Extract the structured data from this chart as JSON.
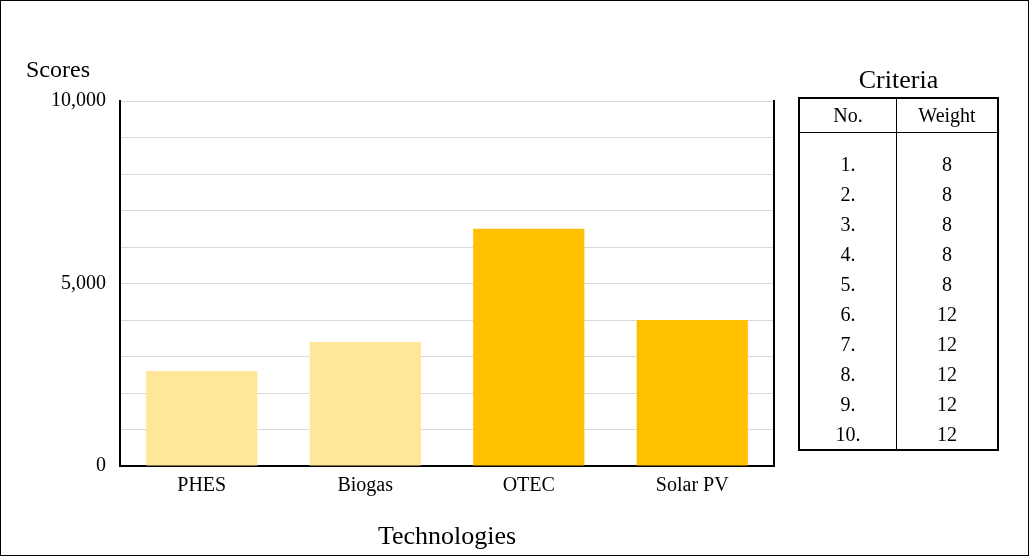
{
  "chart_data": [
    {
      "type": "bar",
      "xlabel": "Technologies",
      "ylabel": "Scores",
      "categories": [
        "PHES",
        "Biogas",
        "OTEC",
        "Solar PV"
      ],
      "values": [
        2600,
        3400,
        6500,
        4000
      ],
      "colors": [
        "#ffe699",
        "#ffe699",
        "#ffc000",
        "#ffc000"
      ],
      "ylim": [
        0,
        10000
      ],
      "yticks": [
        0,
        {
          "value": 1000,
          "label": null
        },
        {
          "value": 2000,
          "label": null
        },
        {
          "value": 3000,
          "label": null
        },
        {
          "value": 4000,
          "label": null
        },
        {
          "value": 5000,
          "label": "5,000"
        },
        {
          "value": 6000,
          "label": null
        },
        {
          "value": 7000,
          "label": null
        },
        {
          "value": 8000,
          "label": null
        },
        {
          "value": 9000,
          "label": null
        },
        {
          "value": 10000,
          "label": "10,000"
        }
      ],
      "grid": "y",
      "legend": false
    },
    {
      "type": "heatmap",
      "title": "Criteria",
      "ylabel": "No.",
      "categories": [
        "Weight"
      ],
      "y_categories": [
        "1.",
        "2.",
        "3.",
        "4.",
        "5.",
        "6.",
        "7.",
        "8.",
        "9.",
        "10."
      ],
      "cells": [
        [
          8
        ],
        [
          8
        ],
        [
          8
        ],
        [
          8
        ],
        [
          8
        ],
        [
          12
        ],
        [
          12
        ],
        [
          12
        ],
        [
          12
        ],
        [
          12
        ]
      ],
      "data_labels": true
    }
  ]
}
